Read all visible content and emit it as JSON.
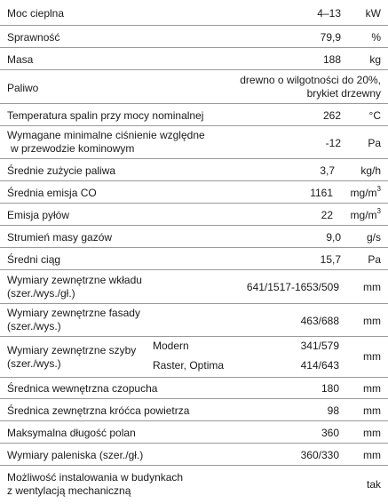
{
  "rows": [
    {
      "label": "Moc cieplna",
      "value": "4–13",
      "unit": "kW"
    },
    {
      "label": "Sprawność",
      "value": "79,9",
      "unit": "%"
    },
    {
      "label": "Masa",
      "value": "188",
      "unit": "kg"
    },
    {
      "label": "Paliwo",
      "value_line1": "drewno o wilgotności do 20%,",
      "value_line2": "brykiet drzewny"
    },
    {
      "label": "Temperatura spalin przy mocy nominalnej",
      "value": "262",
      "unit": "°C"
    },
    {
      "label_line1": "Wymagane minimalne ciśnienie względne",
      "label_line2": "w przewodzie kominowym",
      "value": "-12",
      "unit": "Pa"
    },
    {
      "label": "Średnie zużycie paliwa",
      "value": "3,7",
      "unit": "kg/h"
    },
    {
      "label": "Średnia emisja CO",
      "value": "1161",
      "unit_base": "mg/m",
      "unit_sup": "3"
    },
    {
      "label": "Emisja pyłów",
      "value": "22",
      "unit_base": "mg/m",
      "unit_sup": "3"
    },
    {
      "label": "Strumień masy gazów",
      "value": "9,0",
      "unit": "g/s"
    },
    {
      "label": "Średni ciąg",
      "value": "15,7",
      "unit": "Pa"
    },
    {
      "label_line1": "Wymiary zewnętrzne wkładu",
      "label_line2": "(szer./wys./gł.)",
      "value": "641/1517-1653/509",
      "unit": "mm"
    },
    {
      "label_line1": "Wymiary zewnętrzne fasady",
      "label_line2": "(szer./wys.)",
      "value": "463/688",
      "unit": "mm"
    },
    {
      "label_line1": "Wymiary zewnętrzne szyby",
      "label_line2": "(szer./wys.)",
      "sub1": "Modern",
      "sub1_value": "341/579",
      "sub2": "Raster, Optima",
      "sub2_value": "414/643",
      "unit": "mm"
    },
    {
      "label": "Średnica wewnętrzna czopucha",
      "value": "180",
      "unit": "mm"
    },
    {
      "label": "Średnica zewnętrzna króćca powietrza",
      "value": "98",
      "unit": "mm"
    },
    {
      "label": "Maksymalna długość polan",
      "value": "360",
      "unit": "mm"
    },
    {
      "label": "Wymiary paleniska (szer./gł.)",
      "value": "360/330",
      "unit": "mm"
    },
    {
      "label_line1": "Możliwość instalowania w budynkach",
      "label_line2": "z wentylacją mechaniczną",
      "value": "tak"
    }
  ]
}
